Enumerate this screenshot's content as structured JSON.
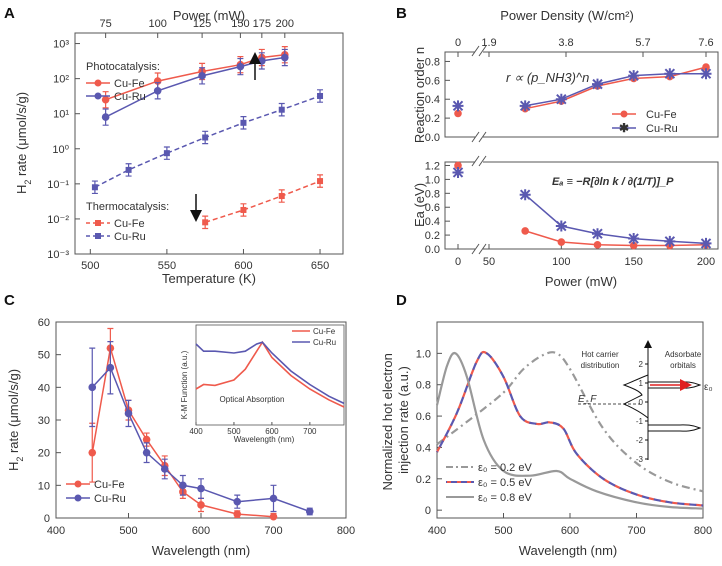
{
  "colors": {
    "cufe": "#ef5a4c",
    "curu": "#5a58b0",
    "gray": "#999999",
    "axis": "#555555"
  },
  "chart_data": [
    {
      "panel": "A",
      "type": "line",
      "xlabel": "Temperature (K)",
      "x2label": "Power (mW)",
      "ylabel_main": "H",
      "ylabel_sub": "2",
      "ylabel_rest": " rate (μmol/s/g)",
      "xlim": [
        490,
        665
      ],
      "yscale": "log",
      "ylim": [
        0.001,
        2000
      ],
      "xticks": [
        "500",
        "550",
        "600",
        "650"
      ],
      "x2ticks": [
        "75",
        "100",
        "125",
        "150",
        "175",
        "200"
      ],
      "yticks": [
        "10⁻³",
        "10⁻²",
        "10⁻¹",
        "10⁰",
        "10¹",
        "10²",
        "10³"
      ],
      "legend_title_1": "Photocatalysis:",
      "legend_title_2": "Thermocatalysis:",
      "series": [
        {
          "name": "Cu-Fe",
          "group": "photo",
          "x": [
            510,
            544,
            573,
            598,
            612,
            627
          ],
          "y": [
            25,
            85,
            160,
            250,
            400,
            480
          ]
        },
        {
          "name": "Cu-Ru",
          "group": "photo",
          "x": [
            510,
            544,
            573,
            598,
            612,
            627
          ],
          "y": [
            8,
            45,
            120,
            220,
            320,
            400
          ]
        },
        {
          "name": "Cu-Fe",
          "group": "thermo",
          "x": [
            575,
            600,
            625,
            650
          ],
          "y": [
            0.008,
            0.018,
            0.045,
            0.12
          ]
        },
        {
          "name": "Cu-Ru",
          "group": "thermo",
          "x": [
            503,
            525,
            550,
            575,
            600,
            625,
            650
          ],
          "y": [
            0.08,
            0.25,
            0.75,
            2.1,
            5.5,
            13,
            32
          ]
        }
      ]
    },
    {
      "panel": "B-top",
      "type": "line",
      "ylabel": "Reaction order n",
      "x2label": "Power Density (W/cm²)",
      "x2ticks": [
        "0",
        "1.9",
        "3.8",
        "5.7",
        "7.6"
      ],
      "yticks": [
        "0.0",
        "0.2",
        "0.4",
        "0.6",
        "0.8"
      ],
      "ylim": [
        0,
        0.9
      ],
      "annotation": "r ∝ (p_NH3)^n",
      "series": [
        {
          "name": "Cu-Fe",
          "x": [
            0,
            75,
            100,
            125,
            150,
            175,
            200
          ],
          "y": [
            0.25,
            0.3,
            0.38,
            0.54,
            0.62,
            0.64,
            0.74
          ]
        },
        {
          "name": "Cu-Ru",
          "x": [
            0,
            75,
            100,
            125,
            150,
            175,
            200
          ],
          "y": [
            0.33,
            0.33,
            0.4,
            0.56,
            0.65,
            0.67,
            0.67
          ]
        }
      ]
    },
    {
      "panel": "B-bottom",
      "type": "line",
      "xlabel": "Power (mW)",
      "ylabel": "Ea (eV)",
      "xticks": [
        "0",
        "50",
        "100",
        "150",
        "200"
      ],
      "yticks": [
        "0.0",
        "0.2",
        "0.4",
        "0.6",
        "0.8",
        "1.0",
        "1.2"
      ],
      "ylim": [
        0,
        1.25
      ],
      "annotation": "Eₐ ≡ −R[∂ln k / ∂(1/T)]_P",
      "series": [
        {
          "name": "Cu-Fe",
          "x": [
            0,
            75,
            100,
            125,
            150,
            175,
            200
          ],
          "y": [
            1.2,
            0.26,
            0.1,
            0.06,
            0.05,
            0.05,
            0.06
          ]
        },
        {
          "name": "Cu-Ru",
          "x": [
            0,
            75,
            100,
            125,
            150,
            175,
            200
          ],
          "y": [
            1.1,
            0.78,
            0.33,
            0.22,
            0.15,
            0.11,
            0.08
          ]
        }
      ]
    },
    {
      "panel": "C",
      "type": "line",
      "xlabel": "Wavelength (nm)",
      "ylabel_main": "H",
      "ylabel_sub": "2",
      "ylabel_rest": " rate (μmol/s/g)",
      "xlim": [
        400,
        800
      ],
      "ylim": [
        0,
        60
      ],
      "xticks": [
        "400",
        "500",
        "600",
        "700",
        "800"
      ],
      "yticks": [
        "0",
        "10",
        "20",
        "30",
        "40",
        "50",
        "60"
      ],
      "series": [
        {
          "name": "Cu-Fe",
          "x": [
            450,
            475,
            500,
            525,
            550,
            575,
            600,
            650,
            700
          ],
          "y": [
            20,
            52,
            33,
            24,
            16,
            8,
            4,
            1.2,
            0.4
          ]
        },
        {
          "name": "Cu-Ru",
          "x": [
            450,
            475,
            500,
            525,
            550,
            575,
            600,
            650,
            700,
            750
          ],
          "y": [
            40,
            46,
            32,
            20,
            15,
            10,
            9,
            5,
            6,
            2
          ]
        }
      ],
      "inset": {
        "ylabel": "K-M Function (a.u.)",
        "xlabel": "Wavelength (nm)",
        "caption": "Optical Absorption",
        "xticks": [
          "400",
          "500",
          "600",
          "700"
        ],
        "series": [
          {
            "name": "Cu-Fe",
            "x": [
              400,
              420,
              450,
              500,
              530,
              560,
              575,
              600,
              650,
              700,
              750,
              790
            ],
            "y": [
              0.4,
              0.45,
              0.44,
              0.5,
              0.62,
              0.82,
              0.92,
              0.75,
              0.55,
              0.4,
              0.28,
              0.2
            ]
          },
          {
            "name": "Cu-Ru",
            "x": [
              400,
              420,
              450,
              500,
              530,
              560,
              575,
              600,
              650,
              700,
              750,
              790
            ],
            "y": [
              0.9,
              0.82,
              0.82,
              0.8,
              0.82,
              0.9,
              0.92,
              0.8,
              0.6,
              0.45,
              0.32,
              0.24
            ]
          }
        ]
      }
    },
    {
      "panel": "D",
      "type": "line",
      "xlabel": "Wavelength (nm)",
      "ylabel": "Normalized hot electron injection rate (a.u.)",
      "xlim": [
        400,
        800
      ],
      "ylim": [
        -0.05,
        1.2
      ],
      "xticks": [
        "400",
        "500",
        "600",
        "700",
        "800"
      ],
      "yticks": [
        "0",
        "0.2",
        "0.4",
        "0.6",
        "0.8",
        "1.0"
      ],
      "series": [
        {
          "name": "ε₀ = 0.2 eV",
          "style": "dashdot",
          "x": [
            400,
            450,
            500,
            530,
            560,
            580,
            600,
            650,
            700,
            750,
            800
          ],
          "y": [
            0.42,
            0.58,
            0.75,
            0.9,
            0.99,
            1.0,
            0.9,
            0.52,
            0.3,
            0.18,
            0.12
          ]
        },
        {
          "name": "ε₀ = 0.5 eV",
          "style": "dash",
          "x": [
            400,
            430,
            460,
            475,
            500,
            525,
            550,
            570,
            590,
            610,
            650,
            700,
            750,
            800
          ],
          "y": [
            0.37,
            0.62,
            0.95,
            1.0,
            0.85,
            0.6,
            0.55,
            0.56,
            0.52,
            0.36,
            0.2,
            0.1,
            0.05,
            0.03
          ]
        },
        {
          "name": "ε₀ = 0.8 eV",
          "style": "solid",
          "x": [
            400,
            415,
            428,
            445,
            470,
            500,
            540,
            580,
            600,
            640,
            700,
            750,
            800
          ],
          "y": [
            0.67,
            0.92,
            1.0,
            0.85,
            0.45,
            0.25,
            0.22,
            0.25,
            0.2,
            0.12,
            0.05,
            0.02,
            0.01
          ]
        }
      ],
      "inset": {
        "title_left_1": "Hot carrier",
        "title_left_2": "distribution",
        "title_right_1": "Adsorbate",
        "title_right_2": "orbitals",
        "ef_label": "E_F",
        "eps_label": "ε₀",
        "yticks": [
          "2",
          "1",
          "0",
          "-1",
          "-2",
          "-3"
        ]
      }
    }
  ],
  "panels": {
    "a": "A",
    "b": "B",
    "c": "C",
    "d": "D"
  }
}
